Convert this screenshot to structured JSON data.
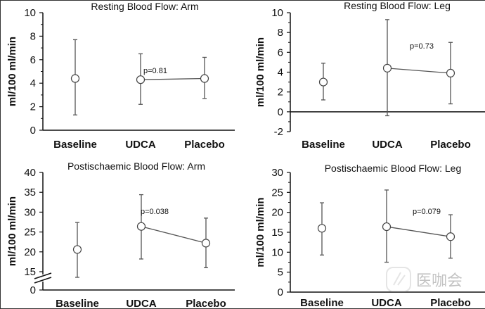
{
  "figure": {
    "watermark": "医咖会"
  },
  "chart_data": [
    {
      "type": "scatter",
      "title": "Resting Blood Flow: Arm",
      "xlabel": "",
      "ylabel": "ml/100 ml/min",
      "categories": [
        "Baseline",
        "UDCA",
        "Placebo"
      ],
      "values": [
        4.4,
        4.3,
        4.4
      ],
      "error_low": [
        1.3,
        2.2,
        2.7
      ],
      "error_high": [
        7.7,
        6.5,
        6.2
      ],
      "connected": [
        "UDCA",
        "Placebo"
      ],
      "annotation": "p=0.81",
      "ylim": [
        0,
        10
      ],
      "yticks": [
        0,
        2,
        4,
        6,
        8,
        10
      ],
      "axis_break": false,
      "zero_line": false,
      "grid": false
    },
    {
      "type": "scatter",
      "title": "Resting Blood Flow: Leg",
      "xlabel": "",
      "ylabel": "ml/100 ml/min",
      "categories": [
        "Baseline",
        "UDCA",
        "Placebo"
      ],
      "values": [
        3.0,
        4.4,
        3.9
      ],
      "error_low": [
        1.2,
        -0.4,
        0.8
      ],
      "error_high": [
        4.9,
        9.3,
        7.0
      ],
      "connected": [
        "UDCA",
        "Placebo"
      ],
      "annotation": "p=0.73",
      "ylim": [
        -2,
        10
      ],
      "yticks": [
        -2,
        0,
        2,
        4,
        6,
        8,
        10
      ],
      "axis_break": false,
      "zero_line": true,
      "grid": false
    },
    {
      "type": "scatter",
      "title": "Postischaemic Blood Flow: Arm",
      "xlabel": "",
      "ylabel": "ml/100 ml/min",
      "categories": [
        "Baseline",
        "UDCA",
        "Placebo"
      ],
      "values": [
        20.6,
        26.4,
        22.2
      ],
      "error_low": [
        13.9,
        18.2,
        16.0
      ],
      "error_high": [
        27.4,
        34.4,
        28.5
      ],
      "connected": [
        "UDCA",
        "Placebo"
      ],
      "annotation": "p=0.038",
      "ylim": [
        0,
        40
      ],
      "yticks": [
        0,
        15,
        20,
        25,
        30,
        35,
        40
      ],
      "axis_break": true,
      "break_range": [
        0,
        12.5
      ],
      "zero_line": false,
      "grid": false
    },
    {
      "type": "scatter",
      "title": "Postischaemic Blood Flow: Leg",
      "xlabel": "",
      "ylabel": "ml/100 ml/min",
      "categories": [
        "Baseline",
        "UDCA",
        "Placebo"
      ],
      "values": [
        16.0,
        16.4,
        13.9
      ],
      "error_low": [
        9.3,
        7.5,
        8.5
      ],
      "error_high": [
        22.4,
        25.6,
        19.4
      ],
      "connected": [
        "UDCA",
        "Placebo"
      ],
      "annotation": "p=0.079",
      "ylim": [
        0,
        30
      ],
      "yticks": [
        0,
        5,
        10,
        15,
        20,
        25,
        30
      ],
      "axis_break": false,
      "zero_line": false,
      "grid": false
    }
  ]
}
